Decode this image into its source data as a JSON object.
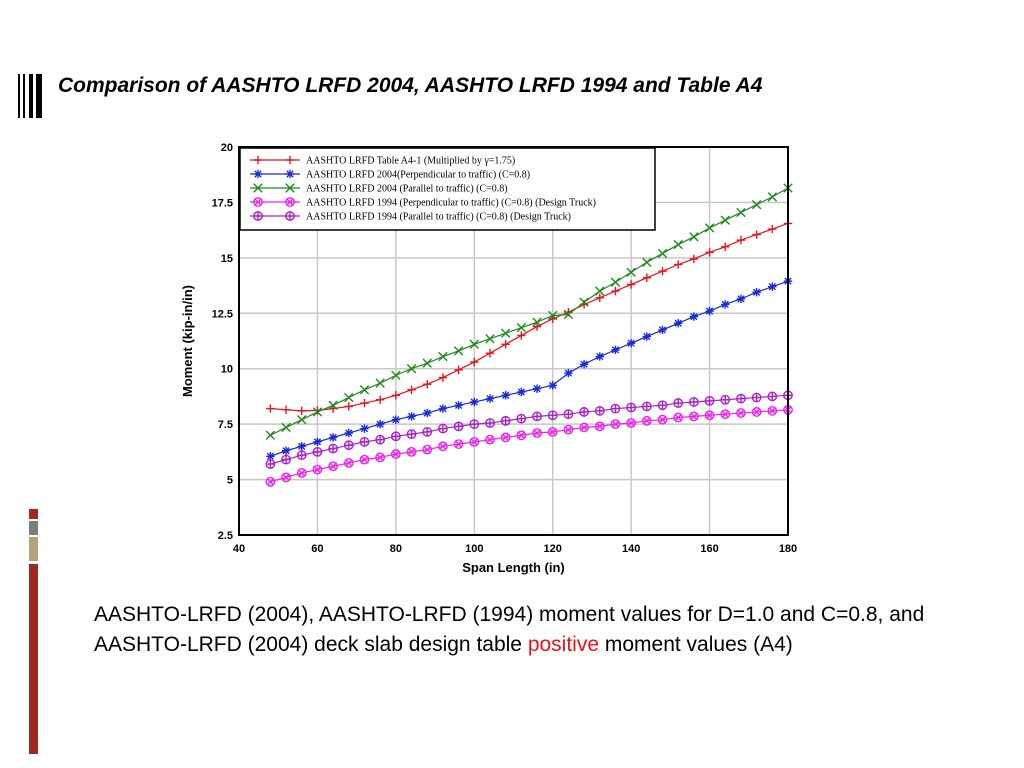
{
  "slide": {
    "title": "Comparison of AASHTO LRFD 2004, AASHTO LRFD 1994 and Table A4",
    "caption_before": "AASHTO-LRFD (2004), AASHTO-LRFD (1994) moment values for D=1.0 and C=0.8, and AASHTO-LRFD (2004) deck slab design table ",
    "caption_highlight": "positive",
    "caption_after": " moment values (A4)",
    "highlight_color": "#e8141a",
    "side_strip_colors": [
      "#9e2a22",
      "#7d7d7d",
      "#b5a27c",
      "#9e2a22"
    ]
  },
  "chart_data": {
    "type": "line",
    "title": "",
    "xlabel": "Span Length (in)",
    "ylabel": "Moment (kip-in/in)",
    "xlim": [
      40,
      180
    ],
    "ylim": [
      2.5,
      20
    ],
    "xticks": [
      40,
      60,
      80,
      100,
      120,
      140,
      160,
      180
    ],
    "yticks": [
      2.5,
      5,
      7.5,
      10,
      12.5,
      15,
      17.5,
      20
    ],
    "grid": true,
    "legend_position": "top-left",
    "series": [
      {
        "name": "AASHTO LRFD Table A4-1 (Multiplied by γ=1.75)",
        "color": "#e8141a",
        "marker": "plus",
        "points": [
          [
            48,
            8.2
          ],
          [
            52,
            8.15
          ],
          [
            56,
            8.1
          ],
          [
            60,
            8.12
          ],
          [
            64,
            8.2
          ],
          [
            68,
            8.3
          ],
          [
            72,
            8.45
          ],
          [
            76,
            8.6
          ],
          [
            80,
            8.8
          ],
          [
            84,
            9.05
          ],
          [
            88,
            9.3
          ],
          [
            92,
            9.6
          ],
          [
            96,
            9.95
          ],
          [
            100,
            10.3
          ],
          [
            104,
            10.7
          ],
          [
            108,
            11.1
          ],
          [
            112,
            11.5
          ],
          [
            116,
            11.9
          ],
          [
            120,
            12.25
          ],
          [
            124,
            12.55
          ],
          [
            128,
            12.9
          ],
          [
            132,
            13.2
          ],
          [
            136,
            13.5
          ],
          [
            140,
            13.8
          ],
          [
            144,
            14.1
          ],
          [
            148,
            14.4
          ],
          [
            152,
            14.7
          ],
          [
            156,
            14.95
          ],
          [
            160,
            15.25
          ],
          [
            164,
            15.5
          ],
          [
            168,
            15.8
          ],
          [
            172,
            16.05
          ],
          [
            176,
            16.3
          ],
          [
            180,
            16.55
          ]
        ]
      },
      {
        "name": "AASHTO LRFD 2004(Perpendicular to traffic) (C=0.8)",
        "color": "#1a2ad6",
        "marker": "asterisk",
        "points": [
          [
            48,
            6.05
          ],
          [
            52,
            6.3
          ],
          [
            56,
            6.5
          ],
          [
            60,
            6.7
          ],
          [
            64,
            6.9
          ],
          [
            68,
            7.1
          ],
          [
            72,
            7.3
          ],
          [
            76,
            7.5
          ],
          [
            80,
            7.7
          ],
          [
            84,
            7.85
          ],
          [
            88,
            8.0
          ],
          [
            92,
            8.2
          ],
          [
            96,
            8.35
          ],
          [
            100,
            8.5
          ],
          [
            104,
            8.65
          ],
          [
            108,
            8.8
          ],
          [
            112,
            8.95
          ],
          [
            116,
            9.1
          ],
          [
            120,
            9.25
          ],
          [
            124,
            9.8
          ],
          [
            128,
            10.2
          ],
          [
            132,
            10.55
          ],
          [
            136,
            10.85
          ],
          [
            140,
            11.15
          ],
          [
            144,
            11.45
          ],
          [
            148,
            11.75
          ],
          [
            152,
            12.05
          ],
          [
            156,
            12.35
          ],
          [
            160,
            12.6
          ],
          [
            164,
            12.9
          ],
          [
            168,
            13.15
          ],
          [
            172,
            13.45
          ],
          [
            176,
            13.7
          ],
          [
            180,
            13.95
          ]
        ]
      },
      {
        "name": "AASHTO LRFD 2004 (Parallel to traffic) (C=0.8)",
        "color": "#1e8a1e",
        "marker": "x",
        "points": [
          [
            48,
            7.0
          ],
          [
            52,
            7.35
          ],
          [
            56,
            7.7
          ],
          [
            60,
            8.05
          ],
          [
            64,
            8.35
          ],
          [
            68,
            8.7
          ],
          [
            72,
            9.05
          ],
          [
            76,
            9.35
          ],
          [
            80,
            9.7
          ],
          [
            84,
            10.0
          ],
          [
            88,
            10.25
          ],
          [
            92,
            10.55
          ],
          [
            96,
            10.8
          ],
          [
            100,
            11.1
          ],
          [
            104,
            11.35
          ],
          [
            108,
            11.6
          ],
          [
            112,
            11.85
          ],
          [
            116,
            12.1
          ],
          [
            120,
            12.4
          ],
          [
            124,
            12.45
          ],
          [
            128,
            13.0
          ],
          [
            132,
            13.5
          ],
          [
            136,
            13.9
          ],
          [
            140,
            14.35
          ],
          [
            144,
            14.8
          ],
          [
            148,
            15.2
          ],
          [
            152,
            15.6
          ],
          [
            156,
            15.95
          ],
          [
            160,
            16.35
          ],
          [
            164,
            16.7
          ],
          [
            168,
            17.05
          ],
          [
            172,
            17.4
          ],
          [
            176,
            17.75
          ],
          [
            180,
            18.15
          ]
        ]
      },
      {
        "name": "AASHTO LRFD 1994 (Perpendicular to traffic) (C=0.8) (Design Truck)",
        "color": "#ee22ee",
        "marker": "circle-x",
        "points": [
          [
            48,
            4.9
          ],
          [
            52,
            5.1
          ],
          [
            56,
            5.3
          ],
          [
            60,
            5.45
          ],
          [
            64,
            5.6
          ],
          [
            68,
            5.75
          ],
          [
            72,
            5.9
          ],
          [
            76,
            6.0
          ],
          [
            80,
            6.15
          ],
          [
            84,
            6.25
          ],
          [
            88,
            6.35
          ],
          [
            92,
            6.5
          ],
          [
            96,
            6.6
          ],
          [
            100,
            6.7
          ],
          [
            104,
            6.8
          ],
          [
            108,
            6.9
          ],
          [
            112,
            7.0
          ],
          [
            116,
            7.1
          ],
          [
            120,
            7.15
          ],
          [
            124,
            7.25
          ],
          [
            128,
            7.35
          ],
          [
            132,
            7.4
          ],
          [
            136,
            7.5
          ],
          [
            140,
            7.55
          ],
          [
            144,
            7.65
          ],
          [
            148,
            7.7
          ],
          [
            152,
            7.8
          ],
          [
            156,
            7.85
          ],
          [
            160,
            7.9
          ],
          [
            164,
            7.95
          ],
          [
            168,
            8.0
          ],
          [
            172,
            8.05
          ],
          [
            176,
            8.1
          ],
          [
            180,
            8.15
          ]
        ]
      },
      {
        "name": "AASHTO LRFD 1994 (Parallel to traffic) (C=0.8) (Design Truck)",
        "color": "#aa22cc",
        "marker": "circle-plus",
        "points": [
          [
            48,
            5.7
          ],
          [
            52,
            5.9
          ],
          [
            56,
            6.1
          ],
          [
            60,
            6.25
          ],
          [
            64,
            6.4
          ],
          [
            68,
            6.55
          ],
          [
            72,
            6.7
          ],
          [
            76,
            6.8
          ],
          [
            80,
            6.95
          ],
          [
            84,
            7.05
          ],
          [
            88,
            7.15
          ],
          [
            92,
            7.3
          ],
          [
            96,
            7.4
          ],
          [
            100,
            7.5
          ],
          [
            104,
            7.55
          ],
          [
            108,
            7.65
          ],
          [
            112,
            7.75
          ],
          [
            116,
            7.85
          ],
          [
            120,
            7.9
          ],
          [
            124,
            7.95
          ],
          [
            128,
            8.05
          ],
          [
            132,
            8.1
          ],
          [
            136,
            8.2
          ],
          [
            140,
            8.25
          ],
          [
            144,
            8.3
          ],
          [
            148,
            8.35
          ],
          [
            152,
            8.45
          ],
          [
            156,
            8.5
          ],
          [
            160,
            8.55
          ],
          [
            164,
            8.6
          ],
          [
            168,
            8.65
          ],
          [
            172,
            8.7
          ],
          [
            176,
            8.75
          ],
          [
            180,
            8.8
          ]
        ]
      }
    ]
  }
}
